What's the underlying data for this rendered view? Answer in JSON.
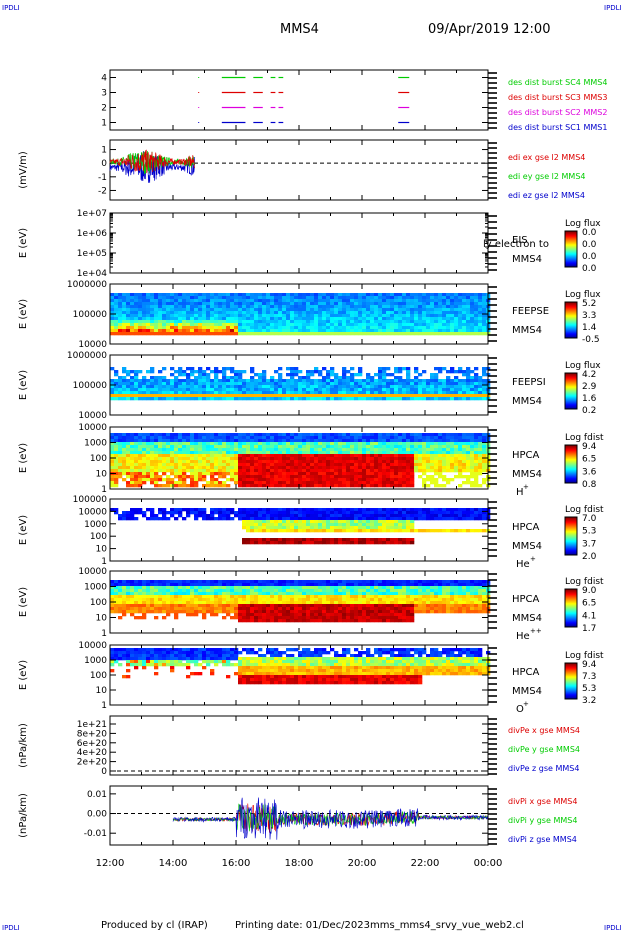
{
  "corners": {
    "tl": "IPDLI",
    "tr": "IPDLI",
    "bl": "IPDLI",
    "br": "IPDLI"
  },
  "header": {
    "spacecraft": "MMS4",
    "datetime": "09/Apr/2019 12:00"
  },
  "footer": {
    "produced": "Produced by cl (IRAP)",
    "printing": "Printing date: 01/Dec/2023",
    "file": "mms_mms4_srvy_vue_web2.cl"
  },
  "colors": {
    "red": "#dd0000",
    "green": "#00cc00",
    "blue": "#0000cc",
    "magenta": "#dd00dd",
    "axis": "#000000"
  },
  "chart_data": [
    {
      "type": "line",
      "panel": "burst",
      "ylim": [
        0.5,
        4.5
      ],
      "yticks": [
        "4",
        "3",
        "2",
        "1"
      ],
      "series": [
        {
          "name": "des dist burst SC1 MMS1",
          "color": "#0000cc",
          "level": 1
        },
        {
          "name": "des dist burst SC2 MMS2",
          "color": "#dd00dd",
          "level": 2
        },
        {
          "name": "des dist burst SC3 MMS3",
          "color": "#dd0000",
          "level": 3
        },
        {
          "name": "des dist burst SC4 MMS4",
          "color": "#00cc00",
          "level": 4
        }
      ],
      "intervals": [
        [
          15.55,
          16.3
        ],
        [
          16.55,
          16.85
        ],
        [
          17.1,
          17.25
        ],
        [
          17.35,
          17.5
        ],
        [
          21.15,
          21.5
        ]
      ]
    },
    {
      "type": "line",
      "panel": "edi",
      "ylabel": "(mV/m)",
      "ylim": [
        -2.7,
        1.7
      ],
      "yticks": [
        "1",
        "0",
        "-1",
        "-2"
      ],
      "xrange": [
        12.0,
        14.7
      ],
      "series": [
        {
          "name": "edi ex gse l2 MMS4",
          "color": "#dd0000"
        },
        {
          "name": "edi ey gse l2 MMS4",
          "color": "#00cc00"
        },
        {
          "name": "edi ez gse l2 MMS4",
          "color": "#0000cc"
        }
      ]
    },
    {
      "type": "heatmap",
      "panel": "eis",
      "ylabel": "E (eV)",
      "log": true,
      "yticks": [
        "1e+07",
        "1e+06",
        "1e+05",
        "1e+04"
      ],
      "labels": [
        "EIS",
        "MMS4"
      ],
      "overlay": "ly electron to",
      "colorbar": {
        "title": "Log flux",
        "ticks": [
          "0.0",
          "0.0",
          "0.0",
          "0.0"
        ]
      }
    },
    {
      "type": "heatmap",
      "panel": "feepse",
      "ylabel": "E (eV)",
      "log": true,
      "yticks": [
        "1000000",
        "100000",
        "10000"
      ],
      "labels": [
        "FEEPSE",
        "MMS4"
      ],
      "colorbar": {
        "title": "Log flux",
        "ticks": [
          "5.2",
          "3.3",
          "1.4",
          "-0.5"
        ]
      }
    },
    {
      "type": "heatmap",
      "panel": "feepsi",
      "ylabel": "E (eV)",
      "log": true,
      "yticks": [
        "1000000",
        "100000",
        "10000"
      ],
      "labels": [
        "FEEPSI",
        "MMS4"
      ],
      "colorbar": {
        "title": "Log flux",
        "ticks": [
          "4.2",
          "2.9",
          "1.6",
          "0.2"
        ]
      }
    },
    {
      "type": "heatmap",
      "panel": "hpca_h",
      "ylabel": "E (eV)",
      "log": true,
      "yticks": [
        "10000",
        "1000",
        "100",
        "10",
        "1"
      ],
      "labels": [
        "HPCA",
        "MMS4"
      ],
      "species": "H",
      "charge": "+",
      "colorbar": {
        "title": "Log fdist",
        "ticks": [
          "9.4",
          "6.5",
          "3.6",
          "0.8"
        ]
      }
    },
    {
      "type": "heatmap",
      "panel": "hpca_he1",
      "ylabel": "E (eV)",
      "log": true,
      "yticks": [
        "100000",
        "10000",
        "1000",
        "100",
        "10",
        "1"
      ],
      "labels": [
        "HPCA",
        "MMS4"
      ],
      "species": "He",
      "charge": "+",
      "colorbar": {
        "title": "Log fdist",
        "ticks": [
          "7.0",
          "5.3",
          "3.7",
          "2.0"
        ]
      }
    },
    {
      "type": "heatmap",
      "panel": "hpca_he2",
      "ylabel": "E (eV)",
      "log": true,
      "yticks": [
        "10000",
        "1000",
        "100",
        "10",
        "1"
      ],
      "labels": [
        "HPCA",
        "MMS4"
      ],
      "species": "He",
      "charge": "++",
      "colorbar": {
        "title": "Log fdist",
        "ticks": [
          "9.0",
          "6.5",
          "4.1",
          "1.7"
        ]
      }
    },
    {
      "type": "heatmap",
      "panel": "hpca_o",
      "ylabel": "E (eV)",
      "log": true,
      "yticks": [
        "10000",
        "1000",
        "100",
        "10",
        "1"
      ],
      "labels": [
        "HPCA",
        "MMS4"
      ],
      "species": "O",
      "charge": "+",
      "colorbar": {
        "title": "Log fdist",
        "ticks": [
          "9.4",
          "7.3",
          "5.3",
          "3.2"
        ]
      }
    },
    {
      "type": "line",
      "panel": "divpe",
      "ylabel": "(nPa/km)",
      "yticks": [
        "1e+21",
        "8e+20",
        "6e+20",
        "4e+20",
        "2e+20",
        "0"
      ],
      "series": [
        {
          "name": "divPe x gse MMS4",
          "color": "#dd0000"
        },
        {
          "name": "divPe y gse MMS4",
          "color": "#00cc00"
        },
        {
          "name": "divPe z gse MMS4",
          "color": "#0000cc"
        }
      ]
    },
    {
      "type": "line",
      "panel": "divpi",
      "ylabel": "(nPa/km)",
      "ylim": [
        -0.016,
        0.014
      ],
      "yticks": [
        "0.01",
        "0.00",
        "-0.01"
      ],
      "xrange": [
        14.0,
        24.0
      ],
      "series": [
        {
          "name": "divPi x gse MMS4",
          "color": "#dd0000"
        },
        {
          "name": "divPi y gse MMS4",
          "color": "#00cc00"
        },
        {
          "name": "divPi z gse MMS4",
          "color": "#0000cc"
        }
      ]
    }
  ],
  "time_axis": {
    "start": 12,
    "end": 24,
    "ticks": [
      "12:00",
      "14:00",
      "16:00",
      "18:00",
      "20:00",
      "22:00",
      "00:00"
    ]
  }
}
